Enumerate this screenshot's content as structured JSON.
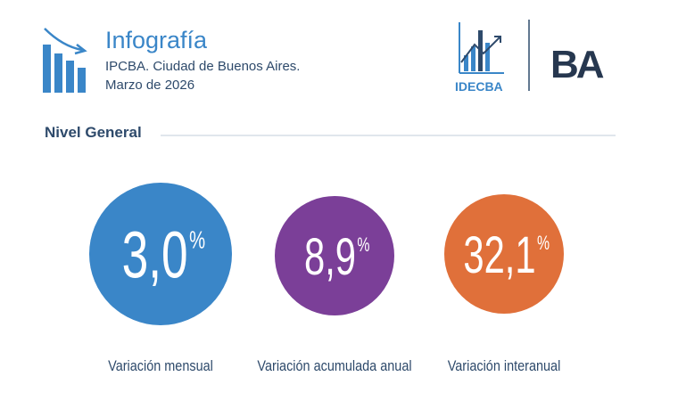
{
  "header": {
    "title": "Infografía",
    "subtitle": "IPCBA. Ciudad de Buenos Aires.",
    "date": "Marzo de 2026",
    "logo_text": "IDECBA",
    "logo_ba": "BA"
  },
  "section": {
    "title": "Nivel General"
  },
  "indicators": [
    {
      "value": "3,0",
      "unit": "%",
      "label": "Variación mensual"
    },
    {
      "value": "8,9",
      "unit": "%",
      "label": "Variación acumulada anual"
    },
    {
      "value": "32,1",
      "unit": "%",
      "label": "Variación interanual"
    }
  ]
}
